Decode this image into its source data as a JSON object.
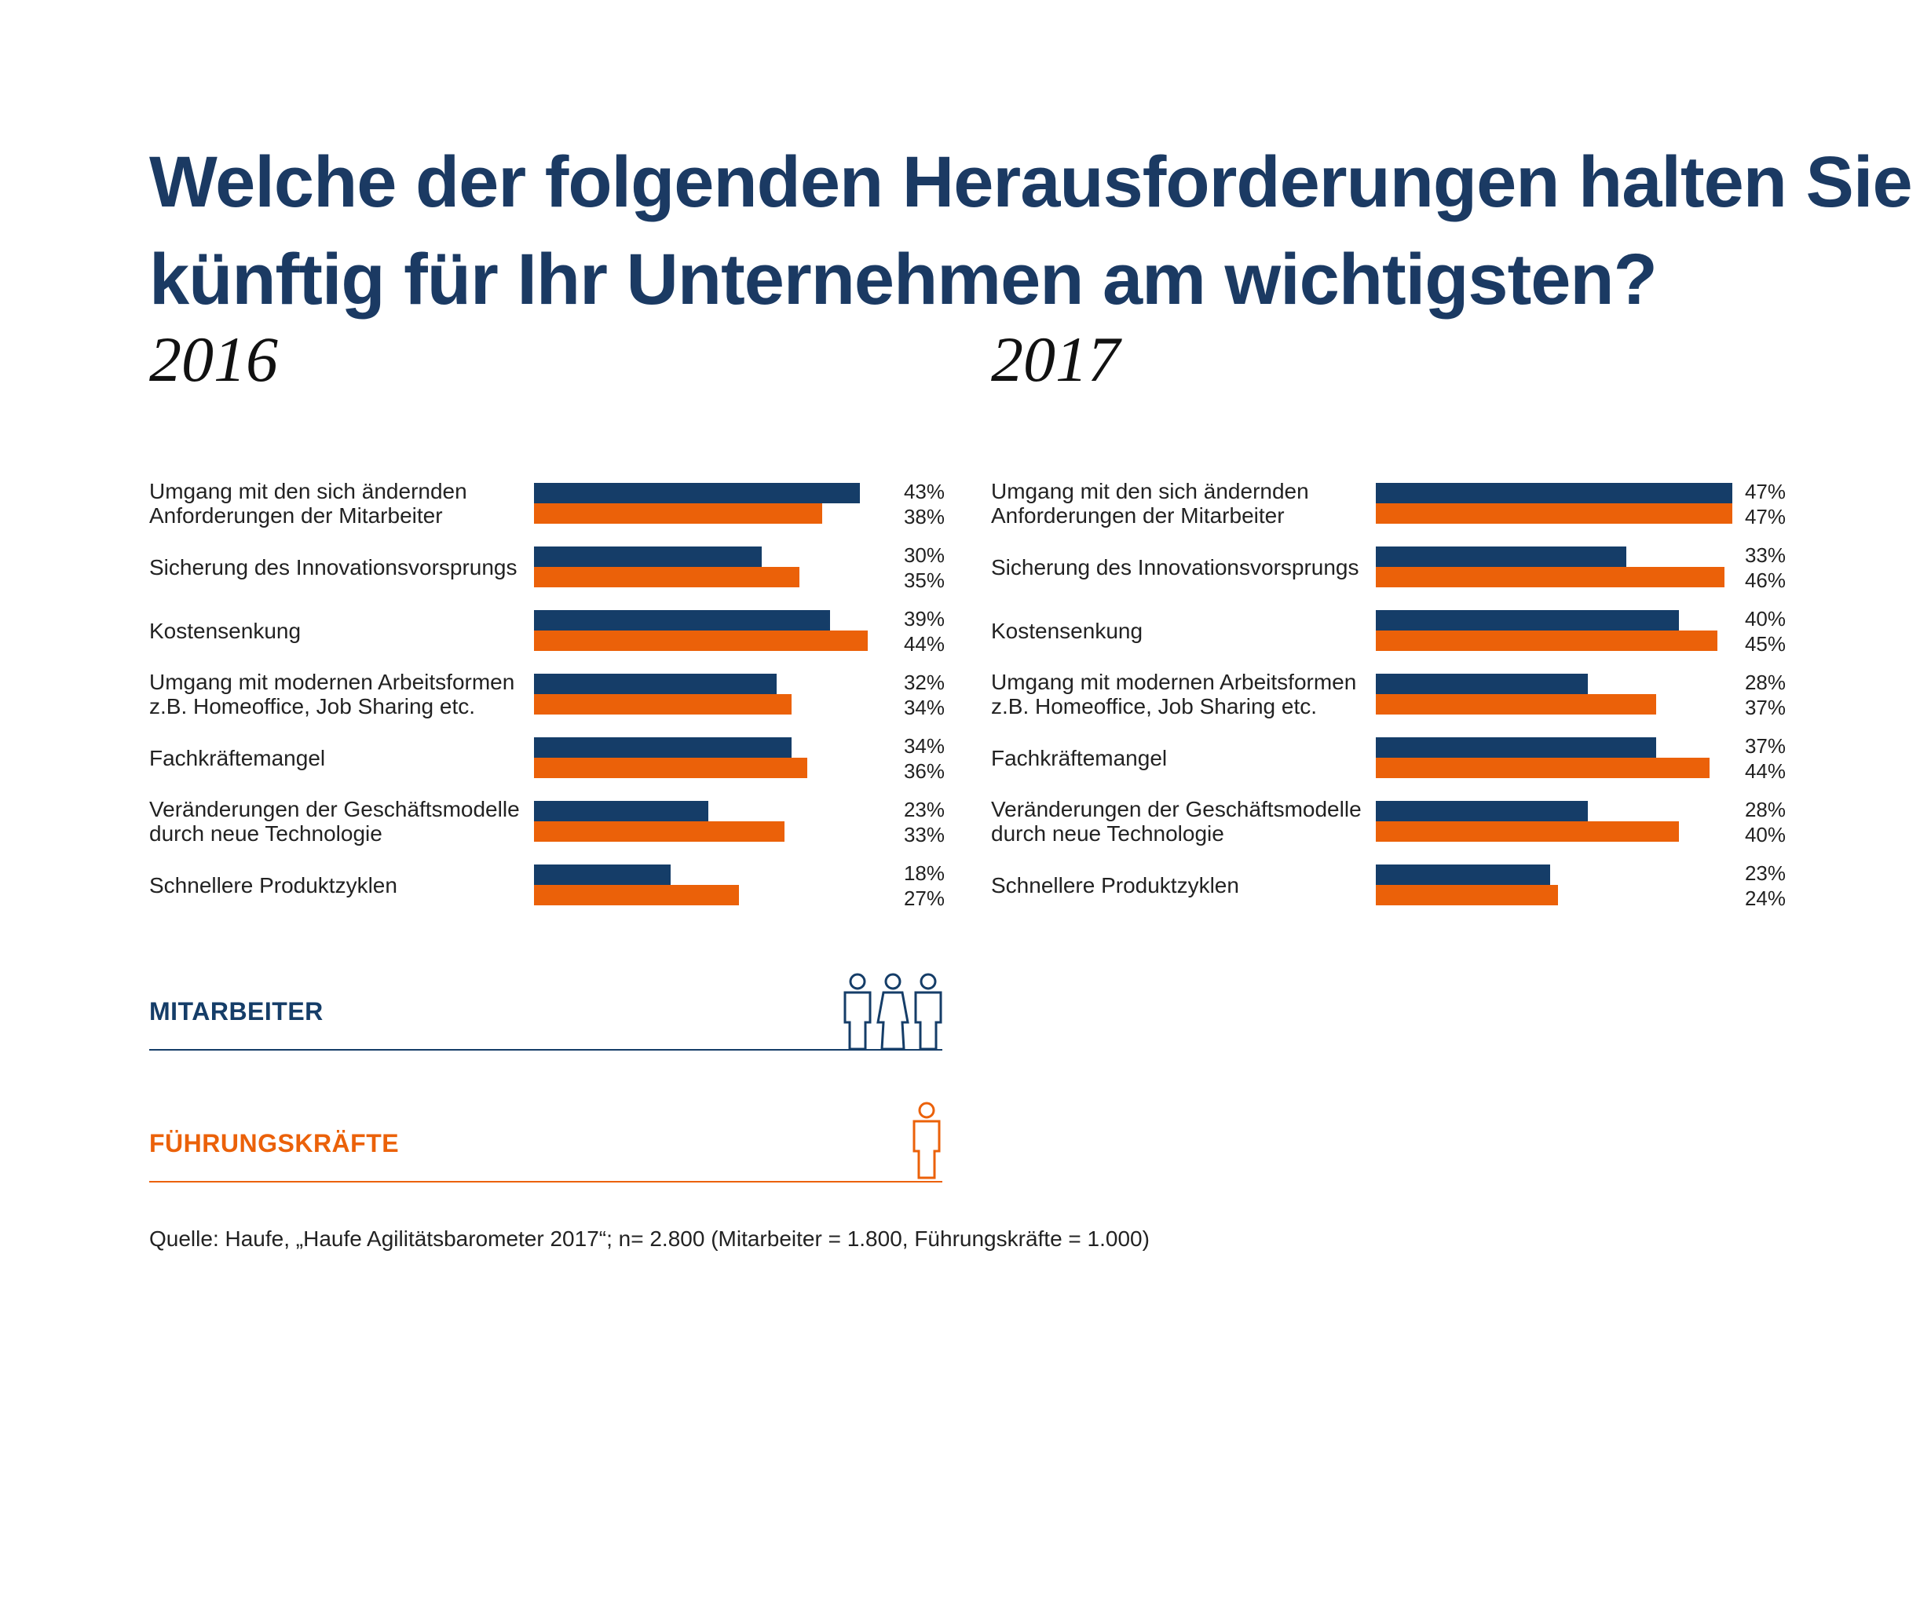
{
  "title_line1": "Welche der folgenden Herausforderungen halten Sie",
  "title_line2": "künftig für Ihr Unternehmen am wichtigsten?",
  "colors": {
    "mitarbeiter": "#153d68",
    "fuehrungskraefte": "#eb6109",
    "title": "#1b3a63"
  },
  "legend": {
    "mitarbeiter": {
      "label": "MITARBEITER",
      "icon": "three-people-icon"
    },
    "fuehrungskraefte": {
      "label": "FÜHRUNGSKRÄFTE",
      "icon": "single-person-icon"
    }
  },
  "source": "Quelle: Haufe, „Haufe Agilitätsbarometer 2017“; n= 2.800 (Mitarbeiter = 1.800, Führungskräfte = 1.000)",
  "chart_data": [
    {
      "type": "bar",
      "orientation": "horizontal",
      "title": "2016",
      "categories": [
        "Umgang mit den sich ändernden Anforderungen der Mitarbeiter",
        "Sicherung des Innovationsvorsprungs",
        "Kostensenkung",
        "Umgang mit modernen Arbeitsformen z.B. Homeoffice, Job Sharing etc.",
        "Fachkräftemangel",
        "Veränderungen der Geschäftsmodelle durch neue Technologie",
        "Schnellere Produktzyklen"
      ],
      "category_lines": [
        [
          "Umgang mit den sich ändernden",
          "Anforderungen der Mitarbeiter"
        ],
        [
          "Sicherung des Innovationsvorsprungs"
        ],
        [
          "Kostensenkung"
        ],
        [
          "Umgang mit modernen Arbeitsformen",
          "z.B. Homeoffice, Job Sharing etc."
        ],
        [
          "Fachkräftemangel"
        ],
        [
          "Veränderungen der Geschäftsmodelle",
          "durch neue Technologie"
        ],
        [
          "Schnellere Produktzyklen"
        ]
      ],
      "series": [
        {
          "name": "MITARBEITER",
          "values": [
            43,
            30,
            39,
            32,
            34,
            23,
            18
          ],
          "labels": [
            "43%",
            "30%",
            "39%",
            "32%",
            "34%",
            "23%",
            "18%"
          ]
        },
        {
          "name": "FÜHRUNGSKRÄFTE",
          "values": [
            38,
            35,
            44,
            34,
            36,
            33,
            27
          ],
          "labels": [
            "38%",
            "35%",
            "44%",
            "34%",
            "36%",
            "33%",
            "27%"
          ]
        }
      ],
      "xlim": [
        0,
        47
      ],
      "unit": "%"
    },
    {
      "type": "bar",
      "orientation": "horizontal",
      "title": "2017",
      "categories": [
        "Umgang mit den sich ändernden Anforderungen der Mitarbeiter",
        "Sicherung des Innovationsvorsprungs",
        "Kostensenkung",
        "Umgang mit modernen Arbeitsformen z.B. Homeoffice, Job Sharing etc.",
        "Fachkräftemangel",
        "Veränderungen der Geschäftsmodelle durch neue Technologie",
        "Schnellere Produktzyklen"
      ],
      "category_lines": [
        [
          "Umgang mit den sich ändernden",
          "Anforderungen der Mitarbeiter"
        ],
        [
          "Sicherung des Innovationsvorsprungs"
        ],
        [
          "Kostensenkung"
        ],
        [
          "Umgang mit modernen Arbeitsformen",
          "z.B. Homeoffice, Job Sharing etc."
        ],
        [
          "Fachkräftemangel"
        ],
        [
          "Veränderungen der Geschäftsmodelle",
          "durch neue Technologie"
        ],
        [
          "Schnellere Produktzyklen"
        ]
      ],
      "series": [
        {
          "name": "MITARBEITER",
          "values": [
            47,
            33,
            40,
            28,
            37,
            28,
            23
          ],
          "labels": [
            "47%",
            "33%",
            "40%",
            "28%",
            "37%",
            "28%",
            "23%"
          ]
        },
        {
          "name": "FÜHRUNGSKRÄFTE",
          "values": [
            47,
            46,
            45,
            37,
            44,
            40,
            24
          ],
          "labels": [
            "47%",
            "46%",
            "45%",
            "37%",
            "44%",
            "40%",
            "24%"
          ]
        }
      ],
      "xlim": [
        0,
        47
      ],
      "unit": "%"
    }
  ]
}
